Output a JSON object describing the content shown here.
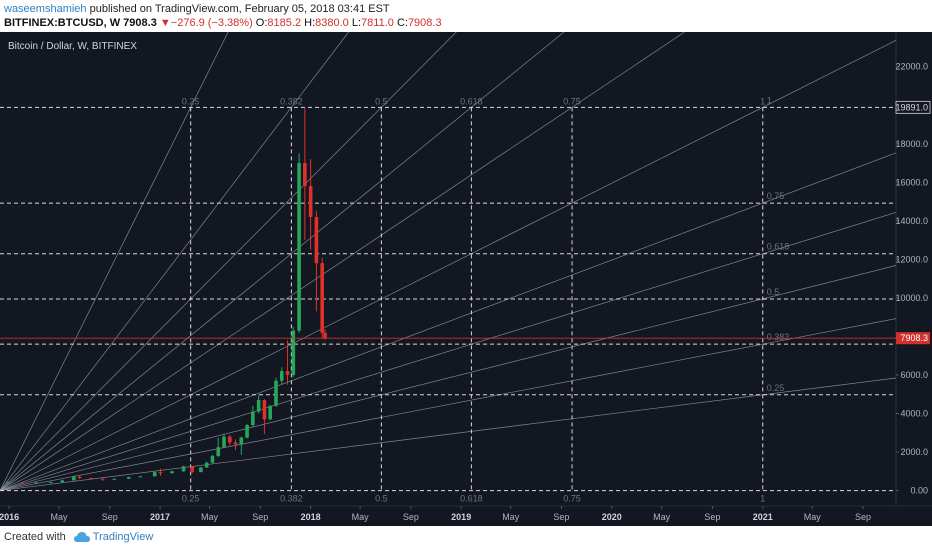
{
  "header": {
    "author": "waseemshamieh",
    "published": "published on TradingView.com, February 05, 2018 03:41 EST",
    "symbol": "BITFINEX:BTCUSD, W",
    "last": "7908.3",
    "change": "−276.9 (−3.38%)",
    "o_label": "O:",
    "o": "8185.2",
    "h_label": "H:",
    "h": "8380.0",
    "l_label": "L:",
    "l": "7811.0",
    "c_label": "C:",
    "c": "7908.3"
  },
  "footer": {
    "created_with": "Created with",
    "brand": "TradingView"
  },
  "colors": {
    "background": "#131722",
    "grid_line": "#d8d8d8",
    "fan_line": "#9aa0aa",
    "up_candle": "#26a65b",
    "down_candle": "#e0312b",
    "price_line": "#d0312d",
    "axis_text": "#b2b5be",
    "fib_label": "#6e7380"
  },
  "chart_data": {
    "type": "candlestick",
    "title": "Bitcoin / Dollar, W, BITFINEX",
    "ylim": [
      -800,
      23800
    ],
    "y_ticks": [
      0,
      2000,
      4000,
      6000,
      8000,
      10000,
      12000,
      14000,
      16000,
      18000,
      20000,
      22000
    ],
    "y_tick_labels": [
      "0.00",
      "2000.0",
      "4000.0",
      "6000.0",
      "8000.0",
      "10000.0",
      "12000.0",
      "14000.0",
      "16000.0",
      "18000.0",
      "",
      "22000.0"
    ],
    "x_ticks": [
      "2016-01",
      "2016-05",
      "2016-09",
      "2017-01",
      "2017-05",
      "2017-09",
      "2018-01",
      "2018-05",
      "2018-09",
      "2019-01",
      "2019-05",
      "2019-09",
      "2020-01",
      "2020-05",
      "2020-09",
      "2021-01",
      "2021-05",
      "2021-09"
    ],
    "x_tick_labels": [
      "2016",
      "May",
      "Sep",
      "2017",
      "May",
      "Sep",
      "2018",
      "May",
      "Sep",
      "2019",
      "May",
      "Sep",
      "2020",
      "May",
      "Sep",
      "2021",
      "May",
      "Sep"
    ],
    "x_range": [
      "2015-12-10",
      "2021-11-20"
    ],
    "last_price": 7908.3,
    "last_price_label": "7908.3",
    "high_price": 19891.0,
    "high_price_label": "19891.0",
    "candles": [
      {
        "d": "2015-12-28",
        "o": 420,
        "c": 430,
        "h": 460,
        "l": 400
      },
      {
        "d": "2016-02-01",
        "o": 430,
        "c": 400,
        "h": 450,
        "l": 370
      },
      {
        "d": "2016-03-07",
        "o": 400,
        "c": 420,
        "h": 440,
        "l": 390
      },
      {
        "d": "2016-04-11",
        "o": 420,
        "c": 440,
        "h": 460,
        "l": 410
      },
      {
        "d": "2016-05-09",
        "o": 440,
        "c": 530,
        "h": 560,
        "l": 430
      },
      {
        "d": "2016-06-06",
        "o": 530,
        "c": 720,
        "h": 780,
        "l": 520
      },
      {
        "d": "2016-06-20",
        "o": 720,
        "c": 650,
        "h": 760,
        "l": 600
      },
      {
        "d": "2016-07-18",
        "o": 650,
        "c": 620,
        "h": 680,
        "l": 580
      },
      {
        "d": "2016-08-15",
        "o": 620,
        "c": 580,
        "h": 640,
        "l": 500
      },
      {
        "d": "2016-09-12",
        "o": 580,
        "c": 610,
        "h": 630,
        "l": 570
      },
      {
        "d": "2016-10-17",
        "o": 610,
        "c": 700,
        "h": 720,
        "l": 600
      },
      {
        "d": "2016-11-14",
        "o": 700,
        "c": 740,
        "h": 760,
        "l": 690
      },
      {
        "d": "2016-12-19",
        "o": 740,
        "c": 960,
        "h": 980,
        "l": 730
      },
      {
        "d": "2017-01-02",
        "o": 960,
        "c": 900,
        "h": 1150,
        "l": 760
      },
      {
        "d": "2017-01-30",
        "o": 900,
        "c": 1000,
        "h": 1030,
        "l": 880
      },
      {
        "d": "2017-02-27",
        "o": 1000,
        "c": 1250,
        "h": 1290,
        "l": 980
      },
      {
        "d": "2017-03-20",
        "o": 1250,
        "c": 960,
        "h": 1280,
        "l": 900
      },
      {
        "d": "2017-04-10",
        "o": 960,
        "c": 1200,
        "h": 1230,
        "l": 950
      },
      {
        "d": "2017-04-24",
        "o": 1200,
        "c": 1450,
        "h": 1500,
        "l": 1180
      },
      {
        "d": "2017-05-08",
        "o": 1450,
        "c": 1800,
        "h": 1850,
        "l": 1420
      },
      {
        "d": "2017-05-22",
        "o": 1800,
        "c": 2250,
        "h": 2750,
        "l": 1750
      },
      {
        "d": "2017-06-05",
        "o": 2250,
        "c": 2800,
        "h": 2950,
        "l": 2200
      },
      {
        "d": "2017-06-19",
        "o": 2800,
        "c": 2500,
        "h": 2900,
        "l": 2350
      },
      {
        "d": "2017-07-03",
        "o": 2500,
        "c": 2400,
        "h": 2650,
        "l": 2100
      },
      {
        "d": "2017-07-17",
        "o": 2400,
        "c": 2750,
        "h": 2800,
        "l": 1850
      },
      {
        "d": "2017-07-31",
        "o": 2750,
        "c": 3400,
        "h": 3450,
        "l": 2700
      },
      {
        "d": "2017-08-14",
        "o": 3400,
        "c": 4100,
        "h": 4400,
        "l": 3300
      },
      {
        "d": "2017-08-28",
        "o": 4100,
        "c": 4700,
        "h": 4950,
        "l": 4000
      },
      {
        "d": "2017-09-11",
        "o": 4700,
        "c": 3700,
        "h": 4750,
        "l": 2950
      },
      {
        "d": "2017-09-25",
        "o": 3700,
        "c": 4400,
        "h": 4450,
        "l": 3650
      },
      {
        "d": "2017-10-09",
        "o": 4400,
        "c": 5700,
        "h": 5850,
        "l": 4350
      },
      {
        "d": "2017-10-23",
        "o": 5700,
        "c": 6200,
        "h": 6400,
        "l": 5500
      },
      {
        "d": "2017-11-06",
        "o": 6200,
        "c": 6000,
        "h": 7800,
        "l": 5500
      },
      {
        "d": "2017-11-20",
        "o": 6000,
        "c": 8300,
        "h": 8500,
        "l": 5900
      },
      {
        "d": "2017-12-04",
        "o": 8300,
        "c": 17000,
        "h": 17500,
        "l": 8200
      },
      {
        "d": "2017-12-18",
        "o": 17000,
        "c": 15800,
        "h": 19891,
        "l": 13000
      },
      {
        "d": "2018-01-01",
        "o": 15800,
        "c": 14200,
        "h": 17200,
        "l": 12500
      },
      {
        "d": "2018-01-15",
        "o": 14200,
        "c": 11800,
        "h": 14500,
        "l": 9300
      },
      {
        "d": "2018-01-29",
        "o": 11800,
        "c": 8185,
        "h": 12100,
        "l": 7900
      },
      {
        "d": "2018-02-05",
        "o": 8185,
        "c": 7908,
        "h": 8380,
        "l": 7811
      }
    ],
    "fib_time_levels": [
      "0",
      "0.25",
      "0.382",
      "0.5",
      "0.618",
      "0.75",
      "1"
    ],
    "fib_price_levels": [
      "0",
      "0.25",
      "0.382",
      "0.5",
      "0.618",
      "0.75",
      "1"
    ],
    "fib_grid": {
      "start": {
        "d": "2015-12-10",
        "price": 0
      },
      "end": {
        "d": "2021-01-01",
        "price": 19891
      }
    }
  }
}
